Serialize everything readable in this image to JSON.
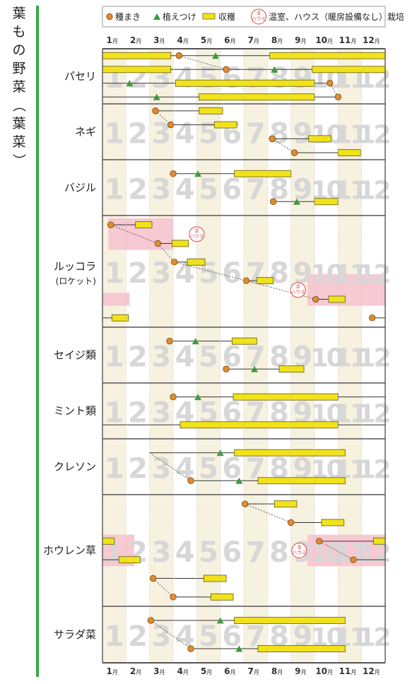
{
  "title_vertical": [
    "葉",
    "も",
    "の",
    "野",
    "菜",
    "（",
    "葉",
    "菜",
    "）"
  ],
  "legend": {
    "sowing": "種まき",
    "planting": "植えつけ",
    "harvest": "収穫",
    "house_badge": "ハウス",
    "house_badge_small": "温",
    "house": "温室、ハウス（暖房設備なし）栽培"
  },
  "colors": {
    "green_bar": "#3aa845",
    "frame": "#555555",
    "band": "#f7f1df",
    "harvest": "#f2e21a",
    "harvest_border": "#6e6a20",
    "sow": "#e28a2e",
    "plant": "#3d9a3d",
    "house_bg": "#f6c9d3",
    "house_red": "#e04040",
    "big_num": "#d7d7d7"
  },
  "chart_data": {
    "type": "gantt",
    "months": [
      "1",
      "2",
      "3",
      "4",
      "5",
      "6",
      "7",
      "8",
      "9",
      "10",
      "11",
      "12"
    ],
    "month_suffix": "月",
    "crops": [
      {
        "name": "パセリ",
        "rows": [
          {
            "segs": [
              {
                "type": "harvest",
                "from": 1,
                "to": 3.9
              },
              {
                "type": "line",
                "from": 3.9,
                "to": 8.1
              },
              {
                "type": "harvest",
                "from": 8.1,
                "to": 13
              }
            ]
          },
          {
            "segs": [
              {
                "type": "harvest",
                "from": 1,
                "to": 3.9
              },
              {
                "type": "line",
                "from": 3.9,
                "to": 6.25
              },
              {
                "type": "line",
                "from": 6.25,
                "to": 9.9
              },
              {
                "type": "harvest",
                "from": 9.9,
                "to": 13
              }
            ],
            "sow": 6.25
          },
          {
            "segs": [
              {
                "type": "line",
                "from": 1,
                "to": 4.1
              },
              {
                "type": "harvest",
                "from": 4.1,
                "to": 10.0
              },
              {
                "type": "line",
                "from": 10.0,
                "to": 10.65
              }
            ],
            "sow": 10.65
          },
          {
            "segs": [
              {
                "type": "line",
                "from": 1,
                "to": 5.1
              },
              {
                "type": "harvest",
                "from": 5.1,
                "to": 10.0
              },
              {
                "type": "line",
                "from": 10.0,
                "to": 11.0
              }
            ],
            "sow": 11.0
          }
        ],
        "markers": [
          {
            "kind": "sow",
            "row": 0,
            "at": 4.25
          },
          {
            "kind": "plant",
            "row": 0,
            "at": 5.8
          },
          {
            "kind": "plant",
            "row": 1,
            "at": 8.3
          },
          {
            "kind": "plant",
            "row": 2,
            "at": 2.15
          },
          {
            "kind": "plant",
            "row": 3,
            "at": 3.3
          }
        ],
        "links": [
          [
            0,
            4.25,
            1,
            6.25
          ],
          [
            2,
            10.65,
            3,
            11.0
          ]
        ]
      },
      {
        "name": "ネギ",
        "rows": [
          {
            "segs": [
              {
                "type": "line",
                "from": 3.25,
                "to": 5.1
              },
              {
                "type": "harvest",
                "from": 5.1,
                "to": 6.1
              }
            ],
            "sow": 3.25
          },
          {
            "segs": [
              {
                "type": "line",
                "from": 3.9,
                "to": 5.75
              },
              {
                "type": "harvest",
                "from": 5.75,
                "to": 6.7
              }
            ],
            "sow": 3.9
          },
          {
            "segs": [
              {
                "type": "line",
                "from": 8.2,
                "to": 9.75
              },
              {
                "type": "harvest",
                "from": 9.75,
                "to": 10.7
              }
            ],
            "sow": 8.2
          },
          {
            "segs": [
              {
                "type": "line",
                "from": 9.15,
                "to": 11.0
              },
              {
                "type": "harvest",
                "from": 11.0,
                "to": 11.95
              }
            ],
            "sow": 9.15
          }
        ],
        "markers": [],
        "links": [
          [
            0,
            3.25,
            1,
            3.9
          ],
          [
            2,
            8.2,
            3,
            9.15
          ]
        ]
      },
      {
        "name": "バジル",
        "rows": [
          {
            "segs": [
              {
                "type": "line",
                "from": 4.0,
                "to": 6.6
              },
              {
                "type": "harvest",
                "from": 6.6,
                "to": 9.0
              }
            ],
            "sow": 4.0
          },
          {
            "segs": [
              {
                "type": "line",
                "from": 8.25,
                "to": 10.0
              },
              {
                "type": "harvest",
                "from": 10.0,
                "to": 11.0
              }
            ],
            "sow": 8.25
          }
        ],
        "markers": [
          {
            "kind": "plant",
            "row": 0,
            "at": 5.05
          },
          {
            "kind": "plant",
            "row": 1,
            "at": 9.25
          }
        ],
        "links": []
      },
      {
        "name": "ルッコラ",
        "subname": "(ロケット)",
        "house_zones": [
          {
            "from": 1.25,
            "to": 4.0,
            "row_from": 0,
            "row_to": 1
          },
          {
            "from": 1,
            "to": 2.15,
            "row_from": 4,
            "row_to": 4
          },
          {
            "from": 9.7,
            "to": 13,
            "row_from": 3,
            "row_to": 4
          }
        ],
        "house_icons": [
          {
            "at": 5.0,
            "row": 0.5
          },
          {
            "at": 9.3,
            "row": 3.5
          }
        ],
        "rows": [
          {
            "segs": [
              {
                "type": "line",
                "from": 1.35,
                "to": 2.4
              },
              {
                "type": "harvest",
                "from": 2.4,
                "to": 3.1
              }
            ],
            "sow": 1.35
          },
          {
            "segs": [
              {
                "type": "line",
                "from": 3.35,
                "to": 3.95
              },
              {
                "type": "harvest",
                "from": 3.95,
                "to": 4.65
              }
            ],
            "sow": 3.35
          },
          {
            "segs": [
              {
                "type": "line",
                "from": 4.05,
                "to": 4.6
              },
              {
                "type": "harvest",
                "from": 4.6,
                "to": 5.35
              }
            ],
            "sow": 4.05
          },
          {
            "segs": [
              {
                "type": "line",
                "from": 7.1,
                "to": 7.55
              },
              {
                "type": "harvest",
                "from": 7.55,
                "to": 8.25
              }
            ],
            "sow": 7.1
          },
          {
            "segs": [
              {
                "type": "line",
                "from": 10.05,
                "to": 10.6
              },
              {
                "type": "harvest",
                "from": 10.6,
                "to": 11.3
              }
            ],
            "sow": 10.05
          },
          {
            "segs": [
              {
                "type": "line",
                "from": 1,
                "to": 1.4
              },
              {
                "type": "harvest",
                "from": 1.4,
                "to": 2.1
              },
              {
                "type": "line",
                "from": 12.45,
                "to": 13
              }
            ],
            "sow": 12.45
          }
        ],
        "markers": [],
        "links": [
          [
            0,
            1.35,
            1,
            3.35
          ],
          [
            1,
            3.35,
            2,
            4.05
          ],
          [
            2,
            4.05,
            3,
            7.1
          ],
          [
            3,
            7.1,
            4,
            10.05
          ]
        ]
      },
      {
        "name": "セイジ類",
        "rows": [
          {
            "segs": [
              {
                "type": "line",
                "from": 3.85,
                "to": 6.5
              },
              {
                "type": "harvest",
                "from": 6.5,
                "to": 7.55
              }
            ],
            "sow": 3.85
          },
          {
            "segs": [
              {
                "type": "line",
                "from": 6.25,
                "to": 8.5
              },
              {
                "type": "harvest",
                "from": 8.5,
                "to": 9.55
              }
            ],
            "sow": 6.25
          }
        ],
        "markers": [
          {
            "kind": "plant",
            "row": 0,
            "at": 4.95
          },
          {
            "kind": "plant",
            "row": 1,
            "at": 7.45
          }
        ],
        "links": []
      },
      {
        "name": "ミント類",
        "rows": [
          {
            "segs": [
              {
                "type": "line",
                "from": 4.0,
                "to": 6.55
              },
              {
                "type": "harvest",
                "from": 6.55,
                "to": 11.0
              },
              {
                "type": "line",
                "from": 11.0,
                "to": 13
              }
            ],
            "sow": 4.0
          },
          {
            "segs": [
              {
                "type": "line",
                "from": 1,
                "to": 4.3
              },
              {
                "type": "harvest",
                "from": 4.3,
                "to": 11.0
              },
              {
                "type": "line",
                "from": 11.0,
                "to": 13
              }
            ]
          }
        ],
        "markers": [
          {
            "kind": "plant",
            "row": 0,
            "at": 5.05
          }
        ],
        "links": []
      },
      {
        "name": "クレソン",
        "rows": [
          {
            "segs": [
              {
                "type": "line",
                "from": 3.0,
                "to": 6.6
              },
              {
                "type": "harvest",
                "from": 6.6,
                "to": 11.3
              }
            ]
          },
          {
            "segs": [
              {
                "type": "line",
                "from": 4.75,
                "to": 7.6
              },
              {
                "type": "harvest",
                "from": 7.6,
                "to": 11.3
              }
            ],
            "sow": 4.75
          }
        ],
        "markers": [
          {
            "kind": "plant",
            "row": 0,
            "at": 6.0
          },
          {
            "kind": "plant",
            "row": 1,
            "at": 6.8
          }
        ],
        "links": [
          [
            0,
            3.0,
            1,
            4.75
          ]
        ]
      },
      {
        "name": "ホウレン草",
        "house_zones": [
          {
            "from": 1,
            "to": 2.35,
            "row_from": 2,
            "row_to": 3
          },
          {
            "from": 9.7,
            "to": 13,
            "row_from": 2,
            "row_to": 3
          }
        ],
        "house_icons": [
          {
            "at": 9.35,
            "row": 2.5
          }
        ],
        "rows": [
          {
            "segs": [
              {
                "type": "line",
                "from": 7.05,
                "to": 8.3
              },
              {
                "type": "harvest",
                "from": 8.3,
                "to": 9.25
              }
            ],
            "sow": 7.05
          },
          {
            "segs": [
              {
                "type": "line",
                "from": 9.0,
                "to": 10.3
              },
              {
                "type": "harvest",
                "from": 10.3,
                "to": 11.25
              }
            ],
            "sow": 9.0
          },
          {
            "segs": [
              {
                "type": "harvest",
                "from": 1,
                "to": 1.5
              },
              {
                "type": "line",
                "from": 10.2,
                "to": 12.5
              },
              {
                "type": "harvest",
                "from": 12.5,
                "to": 13
              }
            ],
            "sow": 10.2
          },
          {
            "segs": [
              {
                "type": "line",
                "from": 1,
                "to": 1.7
              },
              {
                "type": "harvest",
                "from": 1.7,
                "to": 2.6
              },
              {
                "type": "line",
                "from": 11.65,
                "to": 13
              }
            ],
            "sow": 11.65
          },
          {
            "segs": [
              {
                "type": "line",
                "from": 3.15,
                "to": 5.3
              },
              {
                "type": "harvest",
                "from": 5.3,
                "to": 6.25
              }
            ],
            "sow": 3.15
          },
          {
            "segs": [
              {
                "type": "line",
                "from": 4.0,
                "to": 5.6
              },
              {
                "type": "harvest",
                "from": 5.6,
                "to": 6.55
              }
            ],
            "sow": 4.0
          }
        ],
        "markers": [],
        "links": [
          [
            0,
            7.05,
            1,
            9.0
          ],
          [
            2,
            10.2,
            3,
            11.65
          ],
          [
            4,
            3.15,
            5,
            4.0
          ]
        ]
      },
      {
        "name": "サラダ菜",
        "rows": [
          {
            "segs": [
              {
                "type": "line",
                "from": 3.05,
                "to": 6.6
              },
              {
                "type": "harvest",
                "from": 6.6,
                "to": 11.3
              }
            ],
            "sow": 3.05
          },
          {
            "segs": [
              {
                "type": "line",
                "from": 4.75,
                "to": 7.6
              },
              {
                "type": "harvest",
                "from": 7.6,
                "to": 11.3
              }
            ],
            "sow": 4.75
          }
        ],
        "markers": [
          {
            "kind": "plant",
            "row": 0,
            "at": 6.0
          },
          {
            "kind": "plant",
            "row": 1,
            "at": 6.8
          }
        ],
        "links": [
          [
            0,
            3.05,
            1,
            4.75
          ]
        ]
      }
    ]
  }
}
